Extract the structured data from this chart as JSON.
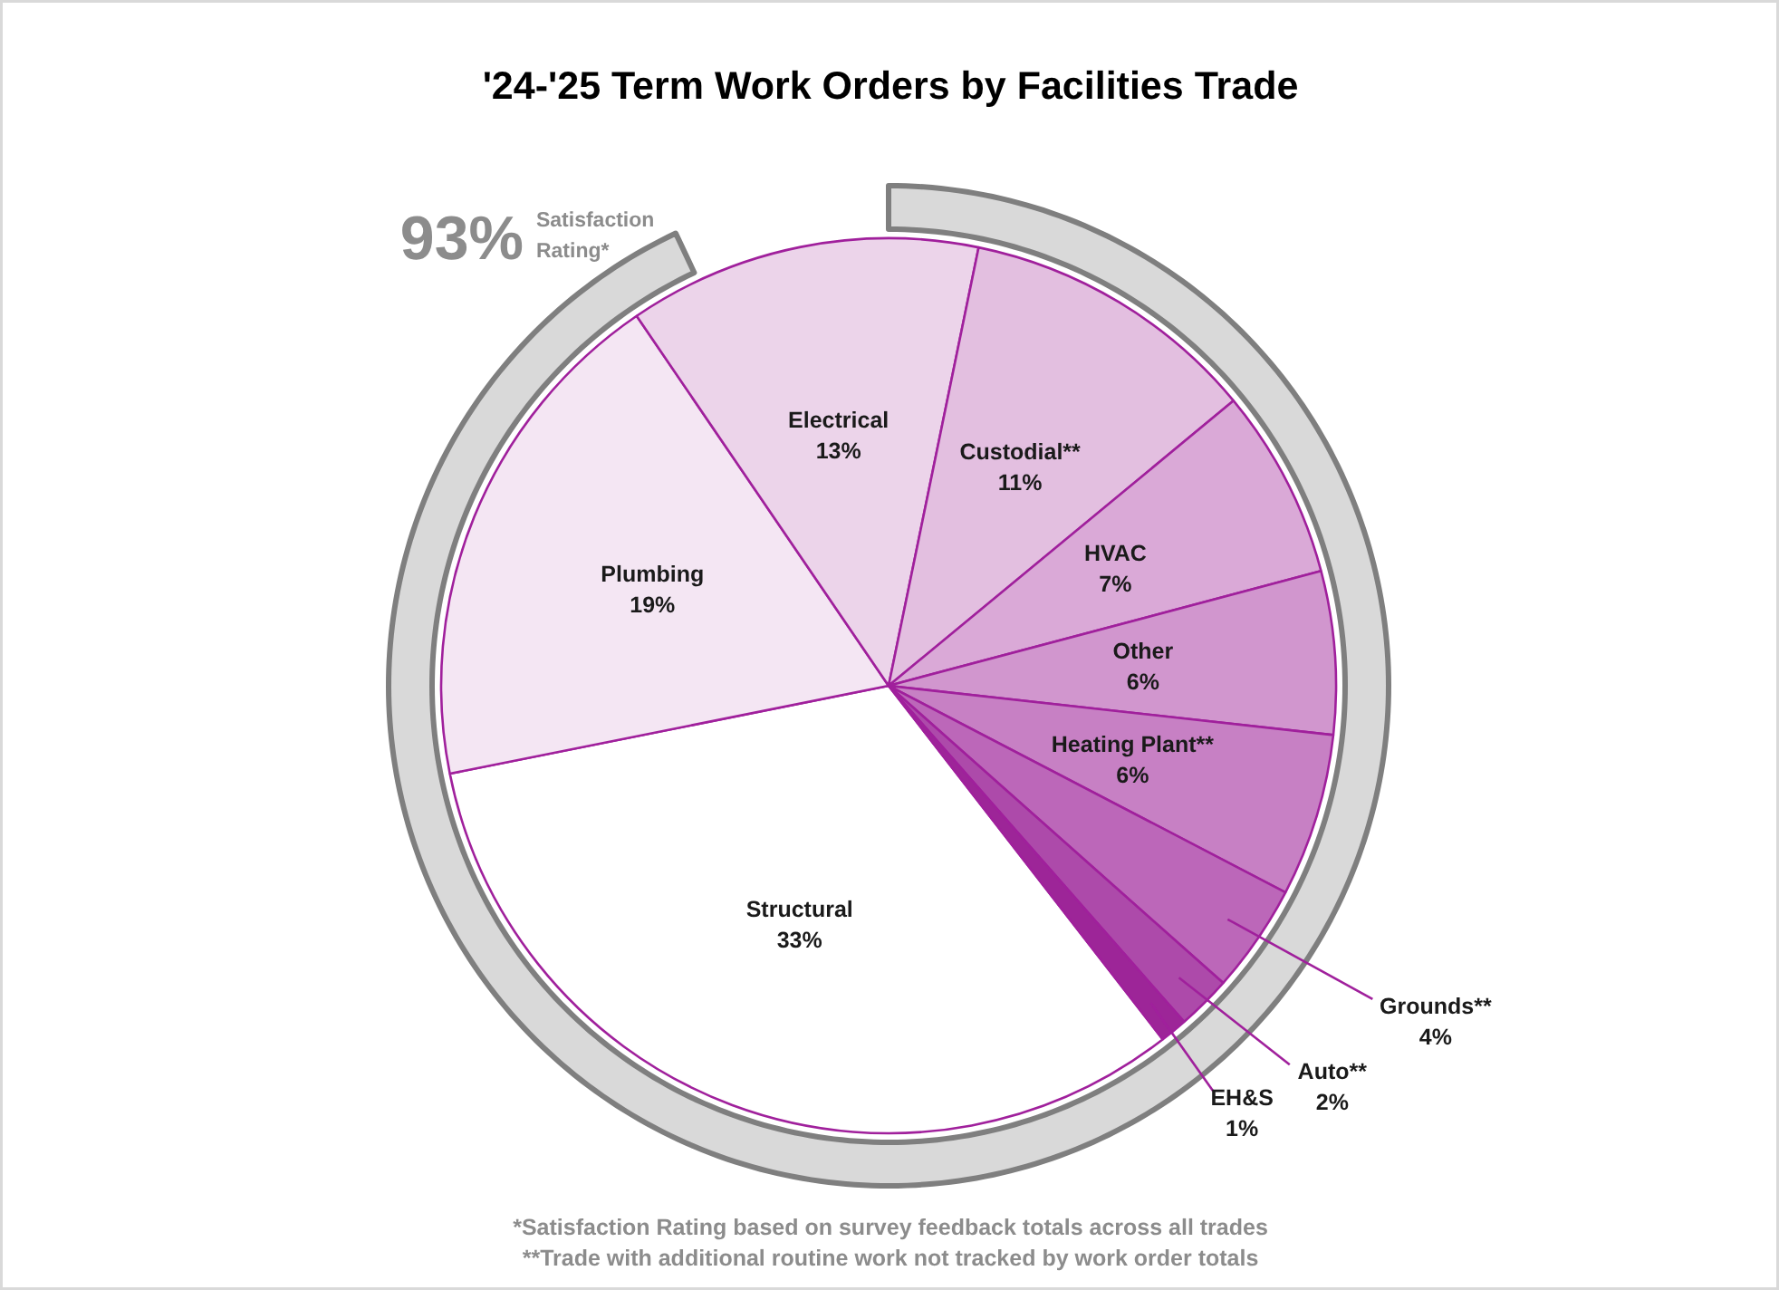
{
  "chart_data": [
    {
      "type": "pie",
      "title": "'24-'25 Term Work Orders by Facilities Trade",
      "categories": [
        "Structural",
        "Plumbing",
        "Electrical",
        "Custodial**",
        "HVAC",
        "Other",
        "Heating Plant**",
        "Grounds**",
        "Auto**",
        "EH&S"
      ],
      "values": [
        33,
        19,
        13,
        11,
        7,
        6,
        6,
        4,
        2,
        1
      ],
      "colors": [
        "#ffffff",
        "#f4e6f3",
        "#ecd4ea",
        "#e3bfe0",
        "#daa9d7",
        "#d196ce",
        "#c780c4",
        "#bc67b9",
        "#ad4aaa",
        "#9d2598"
      ],
      "value_labels": [
        "33%",
        "19%",
        "13%",
        "11%",
        "7%",
        "6%",
        "6%",
        "4%",
        "2%",
        "1%"
      ],
      "annotations": [
        "*Satisfaction Rating based on survey feedback totals across all trades",
        "**Trade with additional routine work not tracked by work order totals"
      ]
    },
    {
      "type": "other",
      "categories": [
        "Satisfaction Rating*"
      ],
      "values": [
        93
      ],
      "colors": [
        "#d9d9d9"
      ],
      "value_labels": [
        "93%"
      ]
    }
  ]
}
